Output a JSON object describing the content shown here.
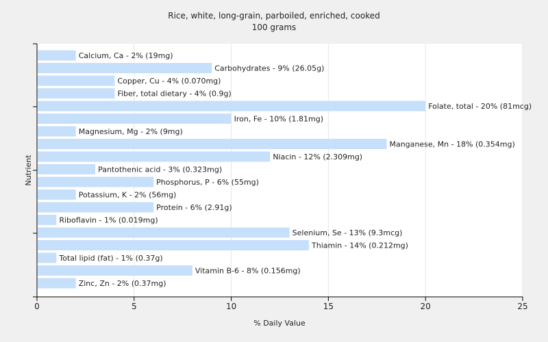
{
  "chart_data": {
    "type": "bar",
    "orientation": "horizontal",
    "title": "Rice, white, long-grain, parboiled, enriched, cooked",
    "subtitle": "100 grams",
    "xlabel": "% Daily Value",
    "ylabel": "Nutrient",
    "xlim": [
      0,
      25
    ],
    "xticks": [
      "0",
      "5",
      "10",
      "15",
      "20",
      "25"
    ],
    "grid": "vertical",
    "bar_color": "#c6dffb",
    "categories": [
      "Calcium, Ca",
      "Carbohydrates",
      "Copper, Cu",
      "Fiber, total dietary",
      "Folate, total",
      "Iron, Fe",
      "Magnesium, Mg",
      "Manganese, Mn",
      "Niacin",
      "Pantothenic acid",
      "Phosphorus, P",
      "Potassium, K",
      "Protein",
      "Riboflavin",
      "Selenium, Se",
      "Thiamin",
      "Total lipid (fat)",
      "Vitamin B-6",
      "Zinc, Zn"
    ],
    "values": [
      2,
      9,
      4,
      4,
      20,
      10,
      2,
      18,
      12,
      3,
      6,
      2,
      6,
      1,
      13,
      14,
      1,
      8,
      2
    ],
    "labels": [
      "Calcium, Ca - 2% (19mg)",
      "Carbohydrates - 9% (26.05g)",
      "Copper, Cu - 4% (0.070mg)",
      "Fiber, total dietary - 4% (0.9g)",
      "Folate, total - 20% (81mcg)",
      "Iron, Fe - 10% (1.81mg)",
      "Magnesium, Mg - 2% (9mg)",
      "Manganese, Mn - 18% (0.354mg)",
      "Niacin - 12% (2.309mg)",
      "Pantothenic acid - 3% (0.323mg)",
      "Phosphorus, P - 6% (55mg)",
      "Potassium, K - 2% (56mg)",
      "Protein - 6% (2.91g)",
      "Riboflavin - 1% (0.019mg)",
      "Selenium, Se - 13% (9.3mcg)",
      "Thiamin - 14% (0.212mg)",
      "Total lipid (fat) - 1% (0.37g)",
      "Vitamin B-6 - 8% (0.156mg)",
      "Zinc, Zn - 2% (0.37mg)"
    ]
  }
}
